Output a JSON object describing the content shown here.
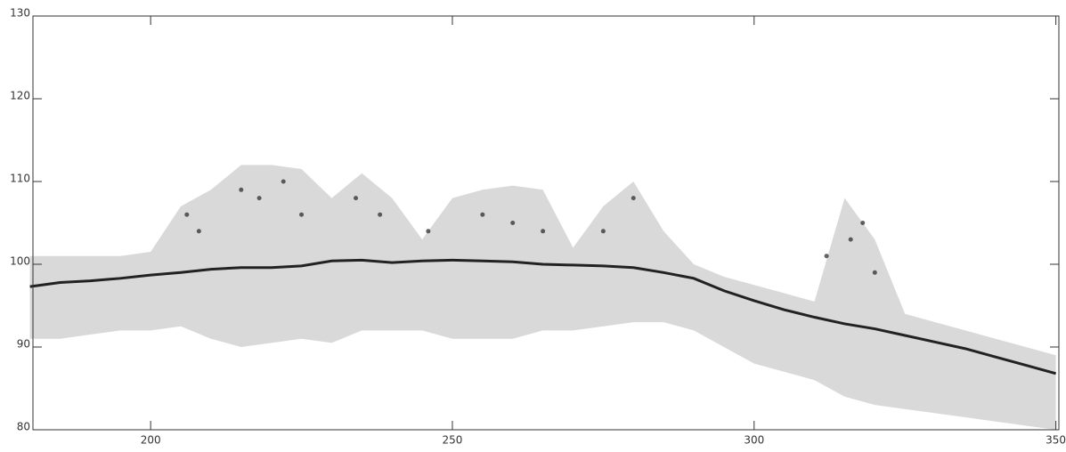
{
  "chart_data": {
    "type": "band",
    "x": [
      180,
      185,
      190,
      195,
      200,
      205,
      210,
      215,
      220,
      225,
      230,
      235,
      240,
      245,
      250,
      255,
      260,
      265,
      270,
      275,
      280,
      285,
      290,
      295,
      300,
      305,
      310,
      315,
      320,
      325,
      330,
      335,
      340,
      345,
      350
    ],
    "values": [
      97.3,
      97.8,
      98,
      98.3,
      98.7,
      99,
      99.4,
      99.6,
      99.6,
      99.8,
      100.4,
      100.5,
      100.2,
      100.4,
      100.5,
      100.4,
      100.3,
      100,
      99.9,
      99.8,
      99.6,
      99,
      98.3,
      96.8,
      95.6,
      94.5,
      93.6,
      92.8,
      92.2,
      91.4,
      90.6,
      89.8,
      88.8,
      87.8,
      86.8
    ],
    "lower": [
      91,
      91,
      91.5,
      92,
      92,
      92.5,
      91,
      90,
      90.5,
      91,
      90.5,
      92,
      92,
      92,
      91,
      91,
      91,
      92,
      92,
      92.5,
      93,
      93,
      92,
      90,
      88,
      87,
      86,
      84,
      83,
      82.5,
      82,
      81.5,
      81,
      80.5,
      80
    ],
    "upper": [
      101,
      101,
      101,
      101,
      101.5,
      107,
      109,
      112,
      112,
      111.5,
      108,
      111,
      108,
      103,
      108,
      109,
      109.5,
      109,
      102,
      107,
      110,
      104,
      100,
      98.5,
      97.5,
      96.5,
      95.5,
      108,
      103,
      94,
      93,
      92,
      91,
      90,
      89
    ],
    "points": {
      "x": [
        206,
        208,
        215,
        218,
        222,
        225,
        234,
        238,
        246,
        255,
        260,
        265,
        275,
        280,
        312,
        316,
        318,
        320
      ],
      "values": [
        106,
        104,
        109,
        108,
        110,
        106,
        108,
        106,
        104,
        106,
        105,
        104,
        104,
        108,
        101,
        103,
        105,
        99
      ]
    },
    "color": "#222222",
    "band_color": "#d9d9d9",
    "xlim": [
      180.5,
      350.5
    ],
    "ylim": [
      80,
      130
    ],
    "xticks": [
      200,
      250,
      300,
      350
    ],
    "yticks": [
      80,
      90,
      100,
      110,
      120,
      130
    ]
  }
}
